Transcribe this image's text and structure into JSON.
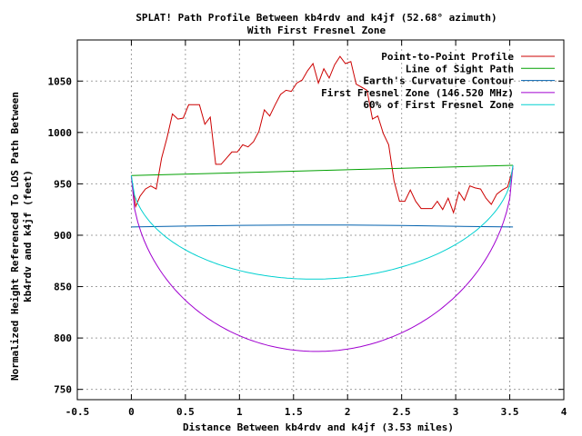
{
  "chart_data": {
    "type": "line",
    "title": "SPLAT! Path Profile Between kb4rdv and k4jf (52.68° azimuth)",
    "subtitle": "With First Fresnel Zone",
    "xlabel": "Distance Between kb4rdv and k4jf (3.53 miles)",
    "ylabel_line1": "Normalized Height Referenced To LOS Path Between",
    "ylabel_line2": "kb4rdv and k4jf (feet)",
    "xlim": [
      -0.5,
      4
    ],
    "ylim": [
      740,
      1090
    ],
    "x_ticks": [
      "-0.5",
      "0",
      "0.5",
      "1",
      "1.5",
      "2",
      "2.5",
      "3",
      "3.5",
      "4"
    ],
    "y_ticks": [
      "750",
      "800",
      "850",
      "900",
      "950",
      "1000",
      "1050"
    ],
    "grid": true,
    "legend_position": "top-right",
    "series": [
      {
        "name": "Point-to-Point Profile",
        "color": "#cc0000",
        "points": [
          [
            0,
            957
          ],
          [
            0.04,
            928
          ],
          [
            0.08,
            938
          ],
          [
            0.13,
            945
          ],
          [
            0.18,
            948
          ],
          [
            0.23,
            945
          ],
          [
            0.28,
            975
          ],
          [
            0.33,
            995
          ],
          [
            0.38,
            1018
          ],
          [
            0.43,
            1013
          ],
          [
            0.48,
            1014
          ],
          [
            0.53,
            1027
          ],
          [
            0.58,
            1027
          ],
          [
            0.63,
            1027
          ],
          [
            0.68,
            1008
          ],
          [
            0.73,
            1015
          ],
          [
            0.78,
            969
          ],
          [
            0.83,
            969
          ],
          [
            0.88,
            975
          ],
          [
            0.93,
            981
          ],
          [
            0.98,
            981
          ],
          [
            1.03,
            988
          ],
          [
            1.08,
            986
          ],
          [
            1.13,
            991
          ],
          [
            1.18,
            1001
          ],
          [
            1.23,
            1022
          ],
          [
            1.28,
            1016
          ],
          [
            1.33,
            1027
          ],
          [
            1.38,
            1037
          ],
          [
            1.43,
            1041
          ],
          [
            1.48,
            1040
          ],
          [
            1.53,
            1048
          ],
          [
            1.58,
            1051
          ],
          [
            1.63,
            1060
          ],
          [
            1.68,
            1067
          ],
          [
            1.73,
            1048
          ],
          [
            1.78,
            1062
          ],
          [
            1.83,
            1053
          ],
          [
            1.88,
            1066
          ],
          [
            1.93,
            1074
          ],
          [
            1.98,
            1067
          ],
          [
            2.03,
            1069
          ],
          [
            2.08,
            1047
          ],
          [
            2.13,
            1044
          ],
          [
            2.18,
            1041
          ],
          [
            2.23,
            1013
          ],
          [
            2.28,
            1016
          ],
          [
            2.33,
            999
          ],
          [
            2.38,
            988
          ],
          [
            2.43,
            953
          ],
          [
            2.48,
            933
          ],
          [
            2.53,
            933
          ],
          [
            2.58,
            944
          ],
          [
            2.63,
            933
          ],
          [
            2.68,
            926
          ],
          [
            2.73,
            926
          ],
          [
            2.78,
            926
          ],
          [
            2.83,
            933
          ],
          [
            2.88,
            925
          ],
          [
            2.93,
            936
          ],
          [
            2.98,
            922
          ],
          [
            3.03,
            942
          ],
          [
            3.08,
            934
          ],
          [
            3.13,
            948
          ],
          [
            3.18,
            946
          ],
          [
            3.23,
            945
          ],
          [
            3.28,
            936
          ],
          [
            3.33,
            930
          ],
          [
            3.38,
            940
          ],
          [
            3.43,
            944
          ],
          [
            3.48,
            947
          ],
          [
            3.53,
            965
          ]
        ]
      },
      {
        "name": "Line of Sight Path",
        "color": "#00a000",
        "points": [
          [
            0,
            958
          ],
          [
            3.53,
            968
          ]
        ]
      },
      {
        "name": "Earth's Curvature Contour",
        "color": "#0060ad",
        "points": [
          [
            0,
            908
          ],
          [
            0.5,
            908.9
          ],
          [
            1,
            909.6
          ],
          [
            1.5,
            909.9
          ],
          [
            2,
            909.9
          ],
          [
            2.5,
            909.5
          ],
          [
            3,
            908.7
          ],
          [
            3.53,
            908
          ]
        ]
      },
      {
        "name": "First Fresnel Zone (146.520 MHz)",
        "color": "#a000d0",
        "center": [
          958,
          968
        ],
        "depth": 176
      },
      {
        "name": "60% of First Fresnel Zone",
        "color": "#00d0d0",
        "center": [
          958,
          968
        ],
        "depth": 105.6
      }
    ]
  }
}
